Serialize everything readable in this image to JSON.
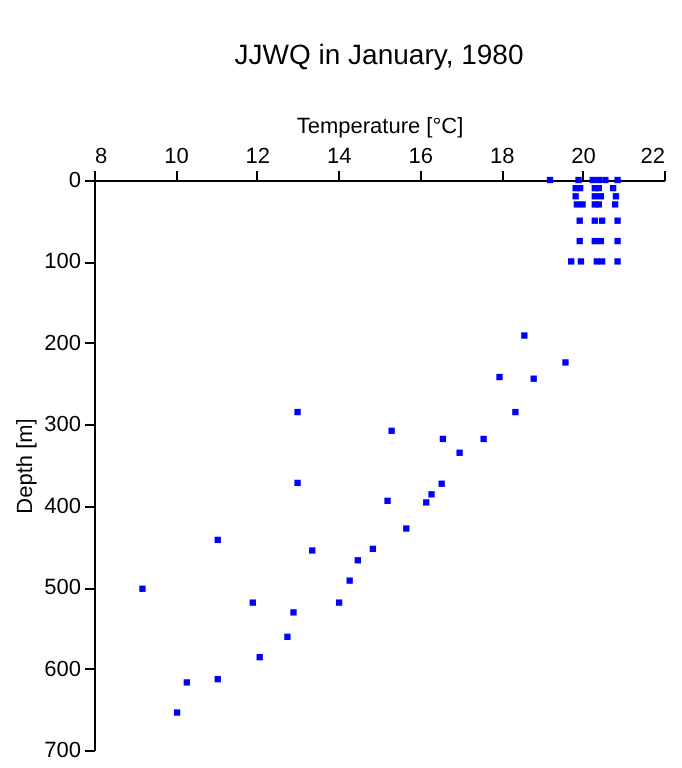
{
  "chart_data": {
    "type": "scatter",
    "title": "JJWQ in January, 1980",
    "xlabel": "Temperature [°C]",
    "ylabel": "Depth [m]",
    "marker": "square",
    "grid": false,
    "xlim": [
      8,
      22
    ],
    "xticks": [
      8,
      10,
      12,
      14,
      16,
      18,
      20,
      22
    ],
    "ylim": [
      700,
      0
    ],
    "yticks": [
      0,
      100,
      200,
      300,
      400,
      500,
      600,
      700
    ],
    "series": [
      {
        "color": "#0000ff",
        "x": [
          19.2,
          19.9,
          20.25,
          20.4,
          20.56,
          20.86,
          19.83,
          19.94,
          20.3,
          20.4,
          20.75,
          19.83,
          20.3,
          20.45,
          20.82,
          19.86,
          20.0,
          20.3,
          20.4,
          20.8,
          19.93,
          20.3,
          20.48,
          20.86,
          19.93,
          20.3,
          20.45,
          20.86,
          19.72,
          19.96,
          20.35,
          20.48,
          20.86,
          18.57,
          19.58,
          17.96,
          18.8,
          13.0,
          18.35,
          15.31,
          16.57,
          17.57,
          16.98,
          13.0,
          16.54,
          16.29,
          15.21,
          16.16,
          15.67,
          11.04,
          13.36,
          14.85,
          14.48,
          14.28,
          9.19,
          11.9,
          14.02,
          12.9,
          12.75,
          12.07,
          11.04,
          10.28,
          10.04
        ],
        "values": [
          0,
          0,
          0,
          0,
          0,
          0,
          10,
          10,
          10,
          10,
          10,
          20,
          20,
          20,
          20,
          30,
          30,
          30,
          30,
          30,
          50,
          50,
          50,
          50,
          75,
          75,
          75,
          75,
          100,
          100,
          100,
          100,
          100,
          191,
          224,
          242,
          244,
          285,
          285,
          308,
          318,
          318,
          335,
          372,
          373,
          386,
          394,
          396,
          428,
          442,
          455,
          453,
          467,
          492,
          502,
          519,
          519,
          531,
          561,
          586,
          613,
          617,
          654
        ]
      }
    ]
  }
}
